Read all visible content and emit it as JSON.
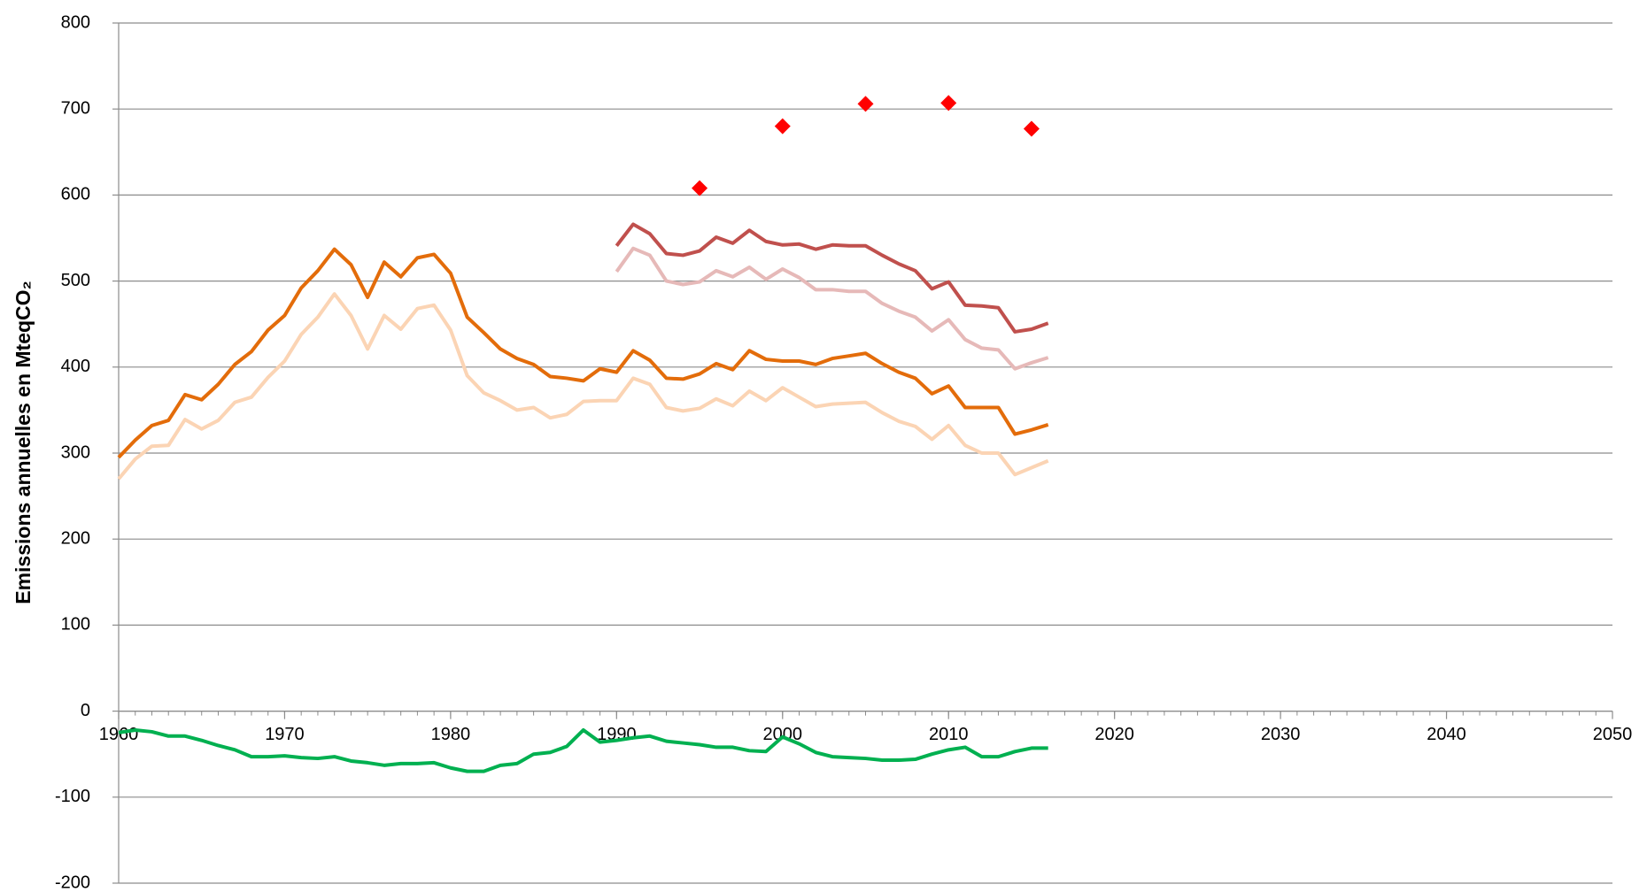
{
  "chart_data": {
    "type": "line",
    "y_label": "Emissions annuelles en MteqCO₂",
    "x": [
      1960,
      1961,
      1962,
      1963,
      1964,
      1965,
      1966,
      1967,
      1968,
      1969,
      1970,
      1971,
      1972,
      1973,
      1974,
      1975,
      1976,
      1977,
      1978,
      1979,
      1980,
      1981,
      1982,
      1983,
      1984,
      1985,
      1986,
      1987,
      1988,
      1989,
      1990,
      1991,
      1992,
      1993,
      1994,
      1995,
      1996,
      1997,
      1998,
      1999,
      2000,
      2001,
      2002,
      2003,
      2004,
      2005,
      2006,
      2007,
      2008,
      2009,
      2010,
      2011,
      2012,
      2013,
      2014,
      2015,
      2016
    ],
    "series": [
      {
        "color": "#fbd4b4",
        "values": [
          270,
          293,
          308,
          309,
          339,
          328,
          338,
          359,
          365,
          388,
          407,
          438,
          458,
          485,
          460,
          421,
          460,
          444,
          468,
          472,
          443,
          390,
          370,
          361,
          350,
          353,
          341,
          345,
          360,
          361,
          361,
          387,
          380,
          353,
          349,
          352,
          363,
          355,
          372,
          361,
          376,
          365,
          354,
          357,
          358,
          359,
          347,
          337,
          331,
          316,
          332,
          309,
          300,
          300,
          275,
          283,
          291
        ]
      },
      {
        "color": "#e36c0a",
        "values": [
          295,
          315,
          332,
          338,
          368,
          362,
          380,
          403,
          418,
          443,
          460,
          492,
          512,
          537,
          519,
          481,
          522,
          505,
          527,
          531,
          509,
          458,
          440,
          421,
          410,
          403,
          389,
          387,
          384,
          398,
          394,
          419,
          408,
          387,
          386,
          392,
          404,
          397,
          419,
          409,
          407,
          407,
          403,
          410,
          413,
          416,
          404,
          394,
          387,
          369,
          378,
          353,
          353,
          353,
          322,
          327,
          333
        ]
      },
      {
        "color": "#e6b9b8",
        "values": [
          null,
          null,
          null,
          null,
          null,
          null,
          null,
          null,
          null,
          null,
          null,
          null,
          null,
          null,
          null,
          null,
          null,
          null,
          null,
          null,
          null,
          null,
          null,
          null,
          null,
          null,
          null,
          null,
          null,
          null,
          511,
          538,
          530,
          500,
          496,
          499,
          512,
          505,
          516,
          502,
          514,
          504,
          490,
          490,
          488,
          488,
          474,
          465,
          458,
          442,
          455,
          432,
          422,
          420,
          398,
          405,
          411
        ]
      },
      {
        "color": "#c0504d",
        "values": [
          null,
          null,
          null,
          null,
          null,
          null,
          null,
          null,
          null,
          null,
          null,
          null,
          null,
          null,
          null,
          null,
          null,
          null,
          null,
          null,
          null,
          null,
          null,
          null,
          null,
          null,
          null,
          null,
          null,
          null,
          541,
          566,
          555,
          532,
          530,
          535,
          551,
          544,
          559,
          546,
          542,
          543,
          537,
          542,
          541,
          541,
          530,
          520,
          512,
          491,
          499,
          472,
          471,
          469,
          441,
          444,
          451
        ]
      },
      {
        "color": "#00b050",
        "values": [
          -25,
          -22,
          -24,
          -29,
          -29,
          -34,
          -40,
          -45,
          -53,
          -53,
          -52,
          -54,
          -55,
          -53,
          -58,
          -60,
          -63,
          -61,
          -61,
          -60,
          -66,
          -70,
          -70,
          -63,
          -61,
          -50,
          -48,
          -41,
          -22,
          -36,
          -34,
          -31,
          -29,
          -35,
          -37,
          -39,
          -42,
          -42,
          -46,
          -47,
          -30,
          -38,
          -48,
          -53,
          -54,
          -55,
          -57,
          -57,
          -56,
          -50,
          -45,
          -42,
          -53,
          -53,
          -47,
          -43,
          -43
        ]
      },
      {
        "type": "scatter",
        "marker": "diamond",
        "color": "#ff0000",
        "x": [
          1995,
          2000,
          2005,
          2010,
          2015
        ],
        "values": [
          608,
          680,
          706,
          707,
          677
        ]
      }
    ],
    "xlim": [
      1960,
      2050
    ],
    "xticks": [
      1960,
      1970,
      1980,
      1990,
      2000,
      2010,
      2020,
      2030,
      2040,
      2050
    ],
    "x_minor_step": 1,
    "ylim": [
      -200,
      800
    ],
    "yticks": [
      -200,
      -100,
      0,
      100,
      200,
      300,
      400,
      500,
      600,
      700,
      800
    ],
    "grid": true
  }
}
